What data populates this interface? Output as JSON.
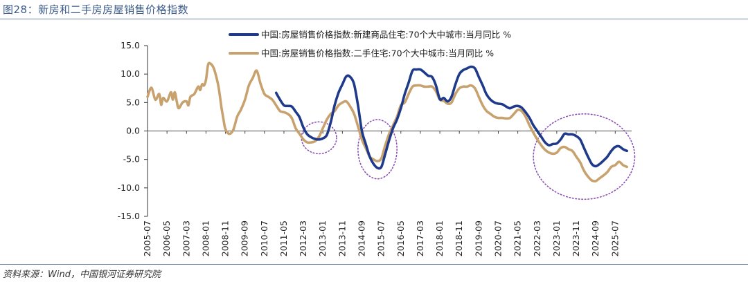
{
  "figure": {
    "title": "图28：新房和二手房房屋销售价格指数",
    "source": "资料来源：Wind，中国银河证券研究院"
  },
  "colors": {
    "new": "#1f3a8a",
    "second": "#c8a26e",
    "circle": "#8a4fb5",
    "axis": "#333333"
  },
  "chart_data": {
    "type": "line",
    "title": "",
    "xlabel": "",
    "ylabel": "",
    "ylim": [
      -15,
      15
    ],
    "yticks": [
      "15.0",
      "10.0",
      "5.0",
      "0.0",
      "-5.0",
      "-10.0",
      "-15.0"
    ],
    "ytick_values": [
      15,
      10,
      5,
      0,
      -5,
      -10,
      -15
    ],
    "xlim": [
      "2005-07",
      "2026-02"
    ],
    "xticks": [
      "2005-07",
      "2006-05",
      "2007-03",
      "2008-01",
      "2008-11",
      "2009-09",
      "2010-07",
      "2011-05",
      "2012-03",
      "2013-01",
      "2013-11",
      "2014-09",
      "2015-07",
      "2016-05",
      "2017-03",
      "2018-01",
      "2018-11",
      "2019-09",
      "2020-07",
      "2021-05",
      "2022-03",
      "2023-01",
      "2023-11",
      "2024-09",
      "2025-07"
    ],
    "grid": false,
    "legend": "top",
    "series": [
      {
        "name": "中国:房屋销售价格指数:新建商品住宅:70个大中城市:当月同比  %",
        "color": "#1f3a8a",
        "points": [
          [
            "2011-01",
            6.7
          ],
          [
            "2011-03",
            5.5
          ],
          [
            "2011-05",
            4.5
          ],
          [
            "2011-07",
            4.4
          ],
          [
            "2011-09",
            4.3
          ],
          [
            "2011-11",
            3.4
          ],
          [
            "2012-01",
            2.4
          ],
          [
            "2012-03",
            0.6
          ],
          [
            "2012-05",
            -0.6
          ],
          [
            "2012-07",
            -1.1
          ],
          [
            "2012-09",
            -1.4
          ],
          [
            "2012-11",
            -1.5
          ],
          [
            "2013-01",
            -1.3
          ],
          [
            "2013-03",
            -0.7
          ],
          [
            "2013-05",
            1.5
          ],
          [
            "2013-07",
            4.5
          ],
          [
            "2013-09",
            6.7
          ],
          [
            "2013-11",
            8.2
          ],
          [
            "2014-01",
            9.6
          ],
          [
            "2014-03",
            9.5
          ],
          [
            "2014-05",
            8.2
          ],
          [
            "2014-07",
            4.5
          ],
          [
            "2014-09",
            0.0
          ],
          [
            "2014-11",
            -2.3
          ],
          [
            "2015-01",
            -4.5
          ],
          [
            "2015-03",
            -5.8
          ],
          [
            "2015-05",
            -6.5
          ],
          [
            "2015-07",
            -6.3
          ],
          [
            "2015-09",
            -4.0
          ],
          [
            "2015-11",
            -1.6
          ],
          [
            "2016-01",
            0.5
          ],
          [
            "2016-03",
            2.0
          ],
          [
            "2016-05",
            4.0
          ],
          [
            "2016-07",
            6.5
          ],
          [
            "2016-09",
            8.5
          ],
          [
            "2016-11",
            10.6
          ],
          [
            "2017-01",
            10.8
          ],
          [
            "2017-03",
            10.8
          ],
          [
            "2017-05",
            10.3
          ],
          [
            "2017-07",
            9.7
          ],
          [
            "2017-09",
            9.5
          ],
          [
            "2017-11",
            8.0
          ],
          [
            "2018-01",
            5.6
          ],
          [
            "2018-03",
            5.8
          ],
          [
            "2018-05",
            5.2
          ],
          [
            "2018-07",
            6.0
          ],
          [
            "2018-09",
            8.2
          ],
          [
            "2018-11",
            10.0
          ],
          [
            "2019-01",
            10.7
          ],
          [
            "2019-03",
            11.0
          ],
          [
            "2019-05",
            11.3
          ],
          [
            "2019-07",
            11.0
          ],
          [
            "2019-09",
            9.5
          ],
          [
            "2019-11",
            8.0
          ],
          [
            "2020-01",
            6.4
          ],
          [
            "2020-03",
            5.5
          ],
          [
            "2020-05",
            5.0
          ],
          [
            "2020-07",
            4.8
          ],
          [
            "2020-09",
            4.7
          ],
          [
            "2020-11",
            4.3
          ],
          [
            "2021-01",
            4.0
          ],
          [
            "2021-03",
            4.3
          ],
          [
            "2021-05",
            4.4
          ],
          [
            "2021-07",
            4.1
          ],
          [
            "2021-09",
            3.3
          ],
          [
            "2021-11",
            2.3
          ],
          [
            "2022-01",
            1.0
          ],
          [
            "2022-03",
            0.0
          ],
          [
            "2022-05",
            -1.0
          ],
          [
            "2022-07",
            -2.0
          ],
          [
            "2022-09",
            -2.5
          ],
          [
            "2022-11",
            -2.3
          ],
          [
            "2023-01",
            -2.2
          ],
          [
            "2023-03",
            -1.5
          ],
          [
            "2023-05",
            -0.5
          ],
          [
            "2023-07",
            -0.6
          ],
          [
            "2023-09",
            -0.6
          ],
          [
            "2023-11",
            -0.9
          ],
          [
            "2024-01",
            -1.5
          ],
          [
            "2024-03",
            -3.0
          ],
          [
            "2024-05",
            -4.5
          ],
          [
            "2024-07",
            -5.8
          ],
          [
            "2024-09",
            -6.2
          ],
          [
            "2024-11",
            -5.8
          ],
          [
            "2025-01",
            -5.2
          ],
          [
            "2025-03",
            -4.5
          ],
          [
            "2025-05",
            -3.5
          ],
          [
            "2025-07",
            -2.8
          ],
          [
            "2025-09",
            -2.7
          ],
          [
            "2025-11",
            -3.2
          ],
          [
            "2026-01",
            -3.5
          ]
        ]
      },
      {
        "name": "中国:房屋销售价格指数:二手住宅:70个大中城市:当月同比  %",
        "color": "#c8a26e",
        "points": [
          [
            "2005-07",
            6.0
          ],
          [
            "2005-09",
            7.6
          ],
          [
            "2005-11",
            5.5
          ],
          [
            "2006-01",
            6.5
          ],
          [
            "2006-02",
            4.6
          ],
          [
            "2006-03",
            5.8
          ],
          [
            "2006-05",
            5.2
          ],
          [
            "2006-07",
            6.8
          ],
          [
            "2006-08",
            5.5
          ],
          [
            "2006-09",
            6.8
          ],
          [
            "2006-10",
            5.2
          ],
          [
            "2006-11",
            4.0
          ],
          [
            "2007-01",
            5.0
          ],
          [
            "2007-03",
            5.2
          ],
          [
            "2007-04",
            4.5
          ],
          [
            "2007-05",
            6.0
          ],
          [
            "2007-07",
            6.5
          ],
          [
            "2007-09",
            7.8
          ],
          [
            "2007-10",
            7.2
          ],
          [
            "2007-11",
            8.2
          ],
          [
            "2007-12",
            8.0
          ],
          [
            "2008-01",
            9.0
          ],
          [
            "2008-02",
            11.5
          ],
          [
            "2008-03",
            11.9
          ],
          [
            "2008-05",
            11.0
          ],
          [
            "2008-07",
            8.5
          ],
          [
            "2008-08",
            6.5
          ],
          [
            "2008-09",
            4.0
          ],
          [
            "2008-10",
            2.0
          ],
          [
            "2008-11",
            0.3
          ],
          [
            "2009-01",
            -0.5
          ],
          [
            "2009-03",
            0.2
          ],
          [
            "2009-05",
            2.5
          ],
          [
            "2009-07",
            3.8
          ],
          [
            "2009-09",
            5.5
          ],
          [
            "2009-11",
            8.0
          ],
          [
            "2010-01",
            9.3
          ],
          [
            "2010-03",
            10.6
          ],
          [
            "2010-05",
            8.3
          ],
          [
            "2010-07",
            6.5
          ],
          [
            "2010-09",
            6.0
          ],
          [
            "2010-11",
            5.5
          ],
          [
            "2011-01",
            4.5
          ],
          [
            "2011-03",
            3.5
          ],
          [
            "2011-05",
            3.3
          ],
          [
            "2011-07",
            3.0
          ],
          [
            "2011-09",
            2.3
          ],
          [
            "2011-11",
            0.5
          ],
          [
            "2012-01",
            -0.5
          ],
          [
            "2012-03",
            -1.5
          ],
          [
            "2012-05",
            -2.0
          ],
          [
            "2012-07",
            -2.0
          ],
          [
            "2012-09",
            -1.8
          ],
          [
            "2012-11",
            -1.0
          ],
          [
            "2013-01",
            0.5
          ],
          [
            "2013-03",
            2.0
          ],
          [
            "2013-05",
            3.0
          ],
          [
            "2013-07",
            3.5
          ],
          [
            "2013-09",
            4.5
          ],
          [
            "2013-11",
            5.0
          ],
          [
            "2014-01",
            5.2
          ],
          [
            "2014-03",
            4.3
          ],
          [
            "2014-05",
            3.0
          ],
          [
            "2014-07",
            0.8
          ],
          [
            "2014-09",
            -1.5
          ],
          [
            "2014-11",
            -3.0
          ],
          [
            "2015-01",
            -4.5
          ],
          [
            "2015-03",
            -5.0
          ],
          [
            "2015-05",
            -5.3
          ],
          [
            "2015-07",
            -4.8
          ],
          [
            "2015-09",
            -2.5
          ],
          [
            "2015-11",
            -0.5
          ],
          [
            "2016-01",
            1.0
          ],
          [
            "2016-03",
            2.5
          ],
          [
            "2016-05",
            4.5
          ],
          [
            "2016-07",
            5.0
          ],
          [
            "2016-09",
            6.5
          ],
          [
            "2016-11",
            7.8
          ],
          [
            "2017-01",
            8.0
          ],
          [
            "2017-03",
            8.0
          ],
          [
            "2017-05",
            7.8
          ],
          [
            "2017-07",
            7.8
          ],
          [
            "2017-09",
            7.8
          ],
          [
            "2017-11",
            7.0
          ],
          [
            "2018-01",
            5.5
          ],
          [
            "2018-03",
            5.3
          ],
          [
            "2018-05",
            4.8
          ],
          [
            "2018-07",
            5.0
          ],
          [
            "2018-09",
            6.5
          ],
          [
            "2018-11",
            7.5
          ],
          [
            "2019-01",
            7.8
          ],
          [
            "2019-03",
            7.8
          ],
          [
            "2019-05",
            8.0
          ],
          [
            "2019-07",
            7.5
          ],
          [
            "2019-09",
            6.0
          ],
          [
            "2019-11",
            4.5
          ],
          [
            "2020-01",
            3.5
          ],
          [
            "2020-03",
            3.0
          ],
          [
            "2020-05",
            2.5
          ],
          [
            "2020-07",
            2.3
          ],
          [
            "2020-09",
            2.3
          ],
          [
            "2020-11",
            2.2
          ],
          [
            "2021-01",
            2.3
          ],
          [
            "2021-03",
            3.0
          ],
          [
            "2021-05",
            3.7
          ],
          [
            "2021-07",
            3.5
          ],
          [
            "2021-09",
            2.5
          ],
          [
            "2021-11",
            1.0
          ],
          [
            "2022-01",
            -0.3
          ],
          [
            "2022-03",
            -1.5
          ],
          [
            "2022-05",
            -2.5
          ],
          [
            "2022-07",
            -3.3
          ],
          [
            "2022-09",
            -3.8
          ],
          [
            "2022-11",
            -4.0
          ],
          [
            "2023-01",
            -3.8
          ],
          [
            "2023-03",
            -3.0
          ],
          [
            "2023-05",
            -2.8
          ],
          [
            "2023-07",
            -3.2
          ],
          [
            "2023-09",
            -3.5
          ],
          [
            "2023-11",
            -4.5
          ],
          [
            "2024-01",
            -5.5
          ],
          [
            "2024-03",
            -7.0
          ],
          [
            "2024-05",
            -8.0
          ],
          [
            "2024-07",
            -8.7
          ],
          [
            "2024-09",
            -8.8
          ],
          [
            "2024-11",
            -8.3
          ],
          [
            "2025-01",
            -7.8
          ],
          [
            "2025-03",
            -7.2
          ],
          [
            "2025-05",
            -6.3
          ],
          [
            "2025-07",
            -6.0
          ],
          [
            "2025-09",
            -5.4
          ],
          [
            "2025-11",
            -6.0
          ],
          [
            "2026-01",
            -6.3
          ]
        ]
      }
    ],
    "highlights": [
      {
        "center": [
          "2012-11",
          -1.2
        ],
        "rx_months": 9,
        "ry": 2.8
      },
      {
        "center": [
          "2015-05",
          -3.2
        ],
        "rx_months": 10,
        "ry": 5.2
      },
      {
        "center": [
          "2024-03",
          -4.5
        ],
        "rx_months": 26,
        "ry": 7.5
      }
    ]
  }
}
